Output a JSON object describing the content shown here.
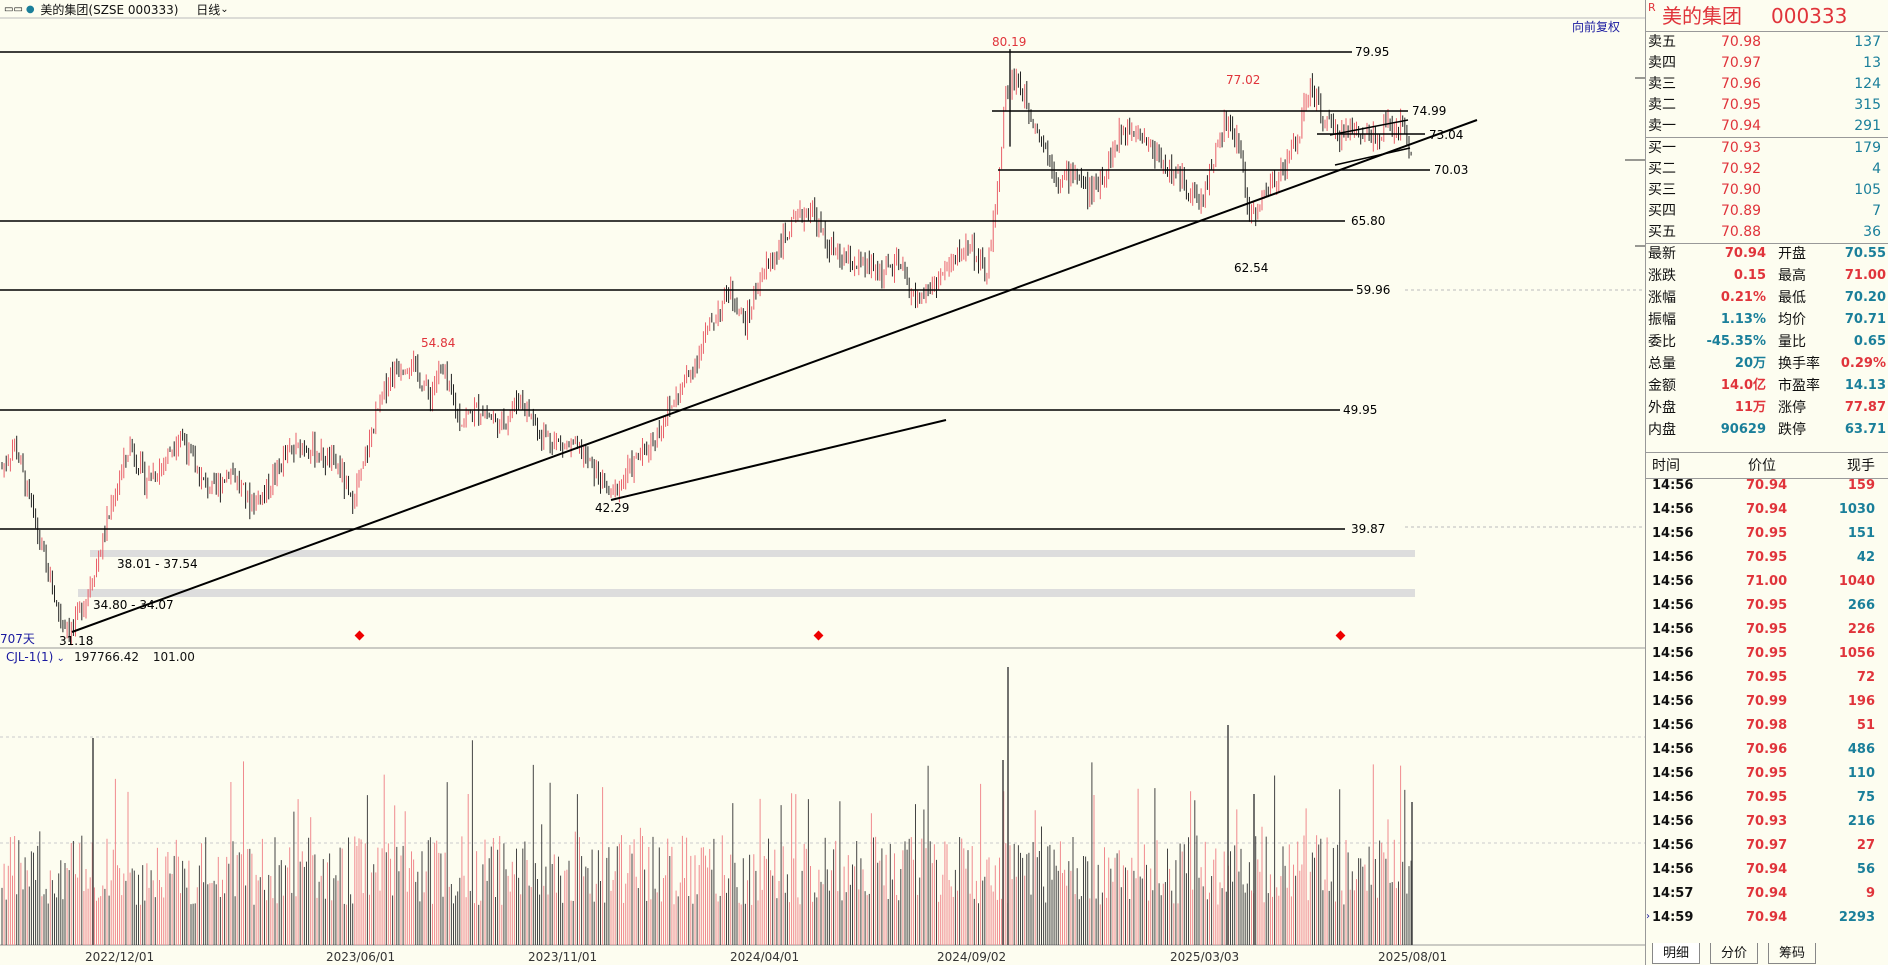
{
  "topbar": {
    "window_icon": "window-toggle-icon",
    "stock_title": "美的集团(SZSE 000333)",
    "period": "日线",
    "adjust": "向前复权"
  },
  "volume_indicator": {
    "name": "CJL-1(1)",
    "value1": "197766.42",
    "value2": "101.00"
  },
  "chart_annotations": {
    "days_label": "707天",
    "hlines": [
      "79.95",
      "74.99",
      "73.04",
      "70.03",
      "65.80",
      "59.96",
      "49.95",
      "39.87"
    ],
    "peaks": [
      "80.19",
      "77.02",
      "54.84"
    ],
    "lows": [
      "62.54",
      "42.29",
      "31.18"
    ],
    "ranges": [
      "38.01 - 37.54",
      "34.80 - 34.07"
    ]
  },
  "x_axis": [
    "2022/12/01",
    "2023/06/01",
    "2023/11/01",
    "2024/04/01",
    "2024/09/02",
    "2025/03/03",
    "2025/08/01"
  ],
  "chart_data": {
    "type": "candlestick",
    "title": "美的集团(SZSE 000333)",
    "y_levels": [
      79.95,
      74.99,
      73.04,
      70.03,
      65.8,
      59.96,
      49.95,
      39.87
    ],
    "marked_highs": [
      {
        "date": "2023/07",
        "value": 54.84
      },
      {
        "date": "2024/10",
        "value": 80.19
      },
      {
        "date": "2025/03",
        "value": 77.02
      }
    ],
    "marked_lows": [
      {
        "date": "2022/10",
        "value": 31.18
      },
      {
        "date": "2024/01",
        "value": 42.29
      },
      {
        "date": "2025/04",
        "value": 62.54
      }
    ],
    "x_ticks": [
      "2022/12/01",
      "2023/06/01",
      "2023/11/01",
      "2024/04/01",
      "2024/09/02",
      "2025/03/03",
      "2025/08/01"
    ],
    "colors": {
      "up": "#e9606a",
      "down": "#222222",
      "volume_up": "#f08a8e",
      "volume_down": "#444444"
    }
  },
  "stock": {
    "badge": "R",
    "name": "美的集团",
    "code": "000333"
  },
  "orderbook": [
    {
      "label": "卖五",
      "price": "70.98",
      "vol": "137"
    },
    {
      "label": "卖四",
      "price": "70.97",
      "vol": "13"
    },
    {
      "label": "卖三",
      "price": "70.96",
      "vol": "124"
    },
    {
      "label": "卖二",
      "price": "70.95",
      "vol": "315"
    },
    {
      "label": "卖一",
      "price": "70.94",
      "vol": "291"
    },
    {
      "label": "买一",
      "price": "70.93",
      "vol": "179"
    },
    {
      "label": "买二",
      "price": "70.92",
      "vol": "4"
    },
    {
      "label": "买三",
      "price": "70.90",
      "vol": "105"
    },
    {
      "label": "买四",
      "price": "70.89",
      "vol": "7"
    },
    {
      "label": "买五",
      "price": "70.88",
      "vol": "36"
    }
  ],
  "stats": [
    {
      "l1": "最新",
      "v1": "70.94",
      "c1": "red",
      "l2": "开盘",
      "v2": "70.55",
      "c2": "teal"
    },
    {
      "l1": "涨跌",
      "v1": "0.15",
      "c1": "red",
      "l2": "最高",
      "v2": "71.00",
      "c2": "red"
    },
    {
      "l1": "涨幅",
      "v1": "0.21%",
      "c1": "red",
      "l2": "最低",
      "v2": "70.20",
      "c2": "teal"
    },
    {
      "l1": "振幅",
      "v1": "1.13%",
      "c1": "teal",
      "l2": "均价",
      "v2": "70.71",
      "c2": "teal"
    },
    {
      "l1": "委比",
      "v1": "-45.35%",
      "c1": "teal",
      "l2": "量比",
      "v2": "0.65",
      "c2": "teal"
    },
    {
      "l1": "总量",
      "v1": "20万",
      "c1": "teal",
      "l2": "换手率",
      "v2": "0.29%",
      "c2": "red"
    },
    {
      "l1": "金额",
      "v1": "14.0亿",
      "c1": "red",
      "l2": "市盈率",
      "v2": "14.13",
      "c2": "teal"
    },
    {
      "l1": "外盘",
      "v1": "11万",
      "c1": "red",
      "l2": "涨停",
      "v2": "77.87",
      "c2": "red"
    },
    {
      "l1": "内盘",
      "v1": "90629",
      "c1": "teal",
      "l2": "跌停",
      "v2": "63.71",
      "c2": "teal"
    }
  ],
  "ticks_header": {
    "time": "时间",
    "price": "价位",
    "vol": "现手"
  },
  "ticks": [
    {
      "time": "14:56",
      "price": "70.94",
      "vol": "159",
      "dir": "red"
    },
    {
      "time": "14:56",
      "price": "70.94",
      "vol": "1030",
      "dir": "teal"
    },
    {
      "time": "14:56",
      "price": "70.95",
      "vol": "151",
      "dir": "teal"
    },
    {
      "time": "14:56",
      "price": "70.95",
      "vol": "42",
      "dir": "teal"
    },
    {
      "time": "14:56",
      "price": "71.00",
      "vol": "1040",
      "dir": "red"
    },
    {
      "time": "14:56",
      "price": "70.95",
      "vol": "266",
      "dir": "teal"
    },
    {
      "time": "14:56",
      "price": "70.95",
      "vol": "226",
      "dir": "red"
    },
    {
      "time": "14:56",
      "price": "70.95",
      "vol": "1056",
      "dir": "red"
    },
    {
      "time": "14:56",
      "price": "70.95",
      "vol": "72",
      "dir": "red"
    },
    {
      "time": "14:56",
      "price": "70.99",
      "vol": "196",
      "dir": "red"
    },
    {
      "time": "14:56",
      "price": "70.98",
      "vol": "51",
      "dir": "red"
    },
    {
      "time": "14:56",
      "price": "70.96",
      "vol": "486",
      "dir": "teal"
    },
    {
      "time": "14:56",
      "price": "70.95",
      "vol": "110",
      "dir": "teal"
    },
    {
      "time": "14:56",
      "price": "70.95",
      "vol": "75",
      "dir": "teal"
    },
    {
      "time": "14:56",
      "price": "70.93",
      "vol": "216",
      "dir": "teal"
    },
    {
      "time": "14:56",
      "price": "70.97",
      "vol": "27",
      "dir": "red"
    },
    {
      "time": "14:56",
      "price": "70.94",
      "vol": "56",
      "dir": "teal"
    },
    {
      "time": "14:57",
      "price": "70.94",
      "vol": "9",
      "dir": "red"
    },
    {
      "time": "14:59",
      "price": "70.94",
      "vol": "2293",
      "dir": "teal"
    }
  ],
  "tabs": [
    "明细",
    "分价",
    "筹码"
  ]
}
